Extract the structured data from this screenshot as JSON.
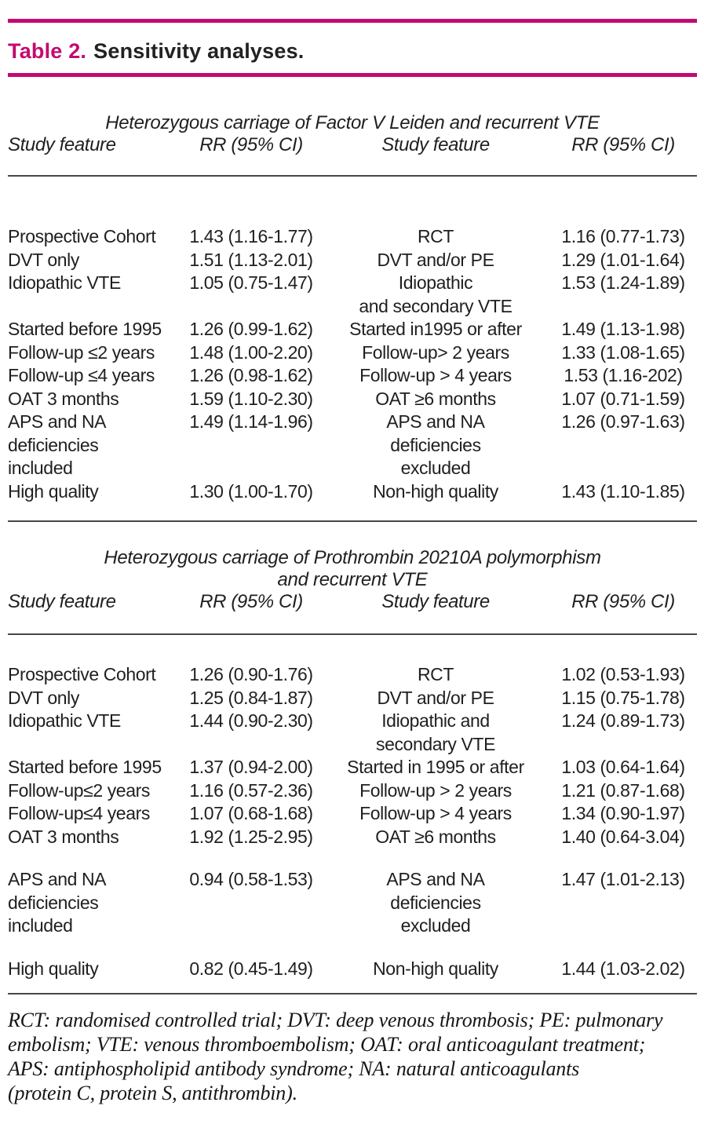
{
  "colors": {
    "accent": "#c40a6e",
    "rule_thin": "#474747"
  },
  "caption": {
    "label": "Table 2.",
    "text": "Sensitivity analyses."
  },
  "tables": [
    {
      "subtitle": "Heterozygous carriage of Factor V Leiden and recurrent VTE",
      "headers": [
        "Study feature",
        "RR (95% CI)",
        "Study feature",
        "RR (95% CI)"
      ],
      "rows": [
        {
          "gap_before": false,
          "cells": [
            "Prospective Cohort",
            "1.43 (1.16-1.77)",
            "RCT",
            "1.16 (0.77-1.73)"
          ]
        },
        {
          "gap_before": false,
          "cells": [
            "DVT only",
            "1.51 (1.13-2.01)",
            "DVT and/or PE",
            "1.29 (1.01-1.64)"
          ]
        },
        {
          "gap_before": false,
          "cells": [
            "Idiopathic VTE",
            "1.05 (0.75-1.47)",
            "Idiopathic\nand secondary VTE",
            "1.53 (1.24-1.89)"
          ]
        },
        {
          "gap_before": false,
          "cells": [
            "Started before 1995",
            "1.26 (0.99-1.62)",
            "Started in1995 or after",
            "1.49 (1.13-1.98)"
          ]
        },
        {
          "gap_before": false,
          "cells": [
            "Follow-up ≤2 years",
            "1.48 (1.00-2.20)",
            "Follow-up> 2 years",
            "1.33 (1.08-1.65)"
          ]
        },
        {
          "gap_before": false,
          "cells": [
            "Follow-up ≤4 years",
            "1.26 (0.98-1.62)",
            "Follow-up > 4 years",
            "1.53 (1.16-202)"
          ]
        },
        {
          "gap_before": false,
          "cells": [
            "OAT 3 months",
            "1.59 (1.10-2.30)",
            "OAT ≥6 months",
            "1.07 (0.71-1.59)"
          ]
        },
        {
          "gap_before": false,
          "cells": [
            "APS and NA\ndeficiencies\nincluded",
            "1.49 (1.14-1.96)",
            "APS and NA\ndeficiencies\nexcluded",
            "1.26 (0.97-1.63)"
          ]
        },
        {
          "gap_before": false,
          "cells": [
            "High quality",
            "1.30 (1.00-1.70)",
            "Non-high quality",
            "1.43 (1.10-1.85)"
          ]
        }
      ]
    },
    {
      "subtitle": "Heterozygous carriage of Prothrombin 20210A polymorphism\nand recurrent VTE",
      "headers": [
        "Study feature",
        "RR (95% CI)",
        "Study feature",
        "RR (95% CI)"
      ],
      "rows": [
        {
          "gap_before": false,
          "cells": [
            "Prospective Cohort",
            "1.26 (0.90-1.76)",
            "RCT",
            "1.02 (0.53-1.93)"
          ]
        },
        {
          "gap_before": false,
          "cells": [
            "DVT only",
            "1.25 (0.84-1.87)",
            "DVT and/or PE",
            "1.15 (0.75-1.78)"
          ]
        },
        {
          "gap_before": false,
          "cells": [
            "Idiopathic VTE",
            "1.44 (0.90-2.30)",
            "Idiopathic and\nsecondary VTE",
            "1.24 (0.89-1.73)"
          ]
        },
        {
          "gap_before": false,
          "cells": [
            "Started before 1995",
            "1.37 (0.94-2.00)",
            "Started in 1995 or after",
            "1.03 (0.64-1.64)"
          ]
        },
        {
          "gap_before": false,
          "cells": [
            "Follow-up≤2 years",
            "1.16 (0.57-2.36)",
            "Follow-up > 2 years",
            "1.21 (0.87-1.68)"
          ]
        },
        {
          "gap_before": false,
          "cells": [
            "Follow-up≤4 years",
            "1.07 (0.68-1.68)",
            "Follow-up > 4 years",
            "1.34 (0.90-1.97)"
          ]
        },
        {
          "gap_before": false,
          "cells": [
            "OAT 3 months",
            "1.92 (1.25-2.95)",
            "OAT ≥6 months",
            "1.40 (0.64-3.04)"
          ]
        },
        {
          "gap_before": true,
          "cells": [
            "APS and NA\ndeficiencies\nincluded",
            "0.94 (0.58-1.53)",
            "APS and NA\ndeficiencies\nexcluded",
            "1.47 (1.01-2.13)"
          ]
        },
        {
          "gap_before": true,
          "cells": [
            "High quality",
            "0.82 (0.45-1.49)",
            "Non-high quality",
            "1.44 (1.03-2.02)"
          ]
        }
      ]
    }
  ],
  "footnote": "RCT: randomised controlled trial; DVT: deep venous thrombosis; PE: pulmonary\nembolism; VTE: venous thromboembolism; OAT: oral anticoagulant treatment;\nAPS: antiphospholipid antibody syndrome; NA: natural anticoagulants\n(protein C, protein S, antithrombin)."
}
